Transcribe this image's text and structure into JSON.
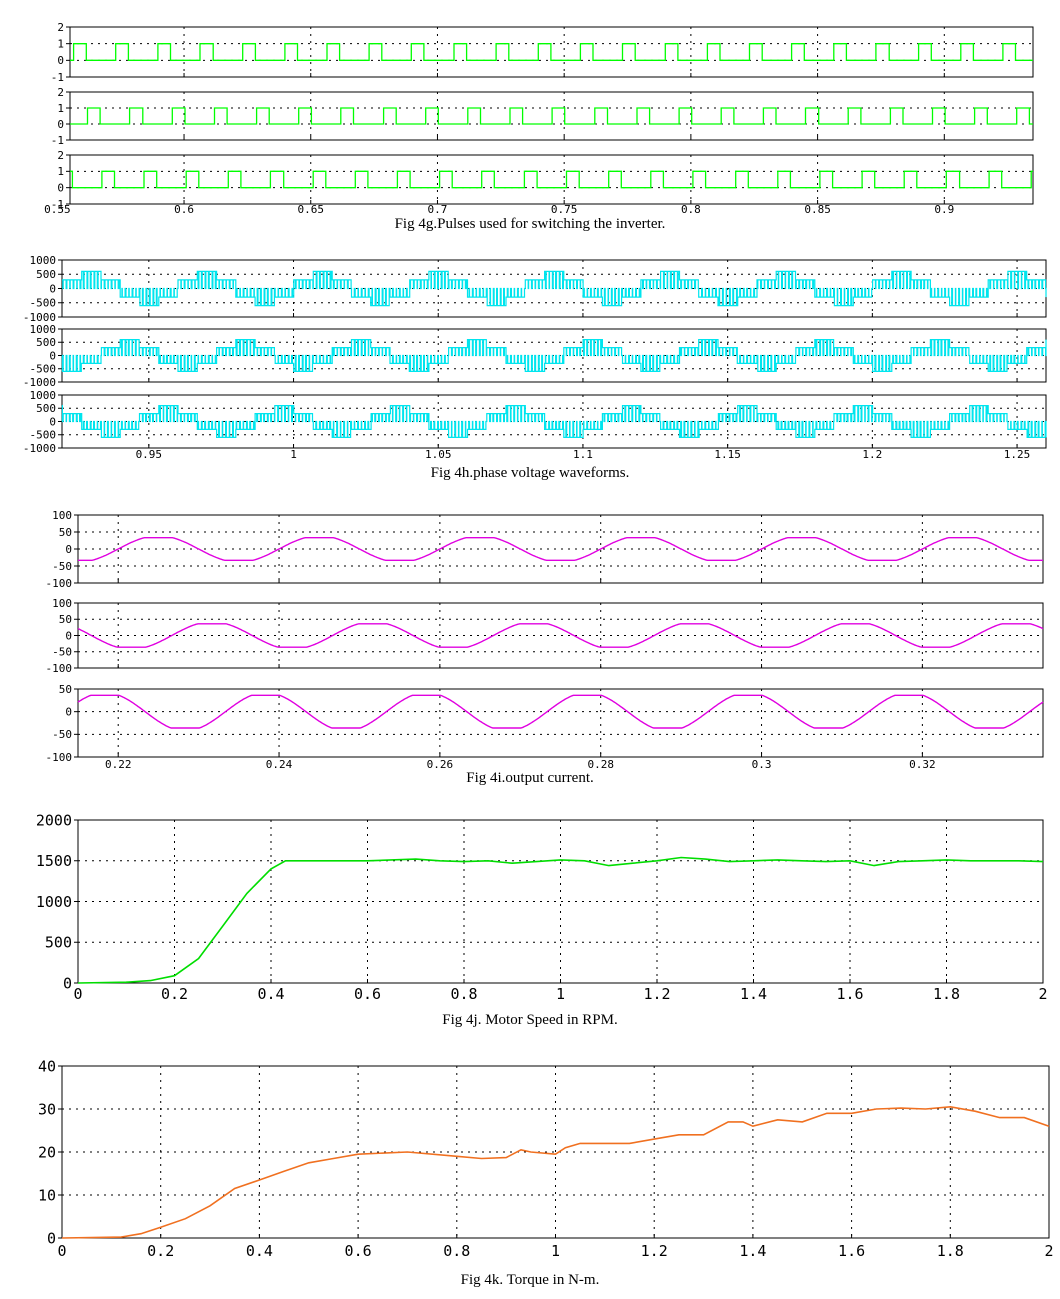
{
  "captions": {
    "g": "Fig 4g.Pulses used for switching the inverter.",
    "h": "Fig 4h.phase voltage waveforms.",
    "i": "Fig 4i.output current.",
    "j": "Fig 4j. Motor Speed in RPM.",
    "k": "Fig 4k. Torque in N-m."
  },
  "colors": {
    "pulses": "#00ff00",
    "voltage": "#00e5ee",
    "current": "#e000e0",
    "speed": "#00dd00",
    "torque": "#f07020",
    "grid": "#000000"
  },
  "chart_data": [
    {
      "id": "fig4g",
      "type": "line",
      "title": "",
      "xlabel": "",
      "ylabel": "",
      "xlim": [
        0.555,
        0.935
      ],
      "xticks": [
        0.55,
        0.6,
        0.65,
        0.7,
        0.75,
        0.8,
        0.85,
        0.9
      ],
      "xtick_labels": [
        "0.55",
        "0.6",
        "0.65",
        "0.7",
        "0.75",
        "0.8",
        "0.85",
        "0.9"
      ],
      "grid": true,
      "subplots": [
        {
          "ylim": [
            -1,
            2
          ],
          "yticks": [
            -1,
            0,
            1,
            2
          ],
          "ytick_labels": [
            "-1",
            "0",
            "1",
            "2"
          ],
          "period": 0.01667,
          "phase": 0.0,
          "duty": 0.3,
          "offset": 0.0105
        },
        {
          "ylim": [
            -1,
            2
          ],
          "yticks": [
            -1,
            0,
            1,
            2
          ],
          "ytick_labels": [
            "-1",
            "0",
            "1",
            "2"
          ],
          "period": 0.01667,
          "phase": 0.333,
          "duty": 0.3,
          "offset": 0.0105
        },
        {
          "ylim": [
            -1,
            2
          ],
          "yticks": [
            -1,
            0,
            1,
            2
          ],
          "ytick_labels": [
            "-1",
            "0",
            "1",
            "2"
          ],
          "period": 0.01667,
          "phase": 0.667,
          "duty": 0.3,
          "offset": 0.0105
        }
      ]
    },
    {
      "id": "fig4h",
      "type": "line",
      "title": "",
      "xlabel": "",
      "ylabel": "",
      "xlim": [
        0.92,
        1.26
      ],
      "xticks": [
        0.95,
        1.0,
        1.05,
        1.1,
        1.15,
        1.2,
        1.25
      ],
      "xtick_labels": [
        "0.95",
        "1",
        "1.05",
        "1.1",
        "1.15",
        "1.2",
        "1.25"
      ],
      "grid": true,
      "subplots": [
        {
          "ylim": [
            -1000,
            1000
          ],
          "yticks": [
            -1000,
            -500,
            0,
            500,
            1000
          ],
          "ytick_labels": [
            "-1000",
            "-500",
            "0",
            "500",
            "1000"
          ],
          "period": 0.04,
          "phase": 0.0,
          "level": 600
        },
        {
          "ylim": [
            -1000,
            1000
          ],
          "yticks": [
            -1000,
            -500,
            0,
            500,
            1000
          ],
          "ytick_labels": [
            "-1000",
            "-500",
            "0",
            "500",
            "1000"
          ],
          "period": 0.04,
          "phase": 0.333,
          "level": 600
        },
        {
          "ylim": [
            -1000,
            1000
          ],
          "yticks": [
            -1000,
            -500,
            0,
            500,
            1000
          ],
          "ytick_labels": [
            "-1000",
            "-500",
            "0",
            "500",
            "1000"
          ],
          "period": 0.04,
          "phase": 0.667,
          "level": 600
        }
      ]
    },
    {
      "id": "fig4i",
      "type": "line",
      "title": "",
      "xlabel": "",
      "ylabel": "",
      "xlim": [
        0.215,
        0.335
      ],
      "xticks": [
        0.22,
        0.24,
        0.26,
        0.28,
        0.3,
        0.32
      ],
      "xtick_labels": [
        "0.22",
        "0.24",
        "0.26",
        "0.28",
        "0.3",
        "0.32"
      ],
      "grid": true,
      "subplots": [
        {
          "ylim": [
            -100,
            100
          ],
          "yticks": [
            -100,
            -50,
            0,
            50,
            100
          ],
          "ytick_labels": [
            "-100",
            "-50",
            "0",
            "50",
            "100"
          ],
          "period": 0.02,
          "phase": 0.0,
          "amplitude": 35
        },
        {
          "ylim": [
            -100,
            100
          ],
          "yticks": [
            -100,
            -50,
            0,
            50,
            100
          ],
          "ytick_labels": [
            "-100",
            "-50",
            "0",
            "50",
            "100"
          ],
          "period": 0.02,
          "phase": 0.333,
          "amplitude": 38
        },
        {
          "ylim": [
            -100,
            50
          ],
          "yticks": [
            -100,
            -50,
            0,
            50
          ],
          "ytick_labels": [
            "-100",
            "-50",
            "0",
            "50"
          ],
          "period": 0.02,
          "phase": 0.667,
          "amplitude": 38
        }
      ]
    },
    {
      "id": "fig4j",
      "type": "line",
      "title": "",
      "xlabel": "",
      "ylabel": "",
      "xlim": [
        0,
        2
      ],
      "ylim": [
        0,
        2000
      ],
      "xticks": [
        0,
        0.2,
        0.4,
        0.6,
        0.8,
        1,
        1.2,
        1.4,
        1.6,
        1.8,
        2
      ],
      "xtick_labels": [
        "0",
        "0.2",
        "0.4",
        "0.6",
        "0.8",
        "1",
        "1.2",
        "1.4",
        "1.6",
        "1.8",
        "2"
      ],
      "yticks": [
        0,
        500,
        1000,
        1500,
        2000
      ],
      "ytick_labels": [
        "0",
        "500",
        "1000",
        "1500",
        "2000"
      ],
      "grid": true,
      "x": [
        0,
        0.1,
        0.15,
        0.2,
        0.25,
        0.3,
        0.35,
        0.4,
        0.43,
        0.46,
        0.5,
        0.6,
        0.7,
        0.75,
        0.8,
        0.85,
        0.9,
        1.0,
        1.05,
        1.1,
        1.15,
        1.2,
        1.25,
        1.3,
        1.35,
        1.4,
        1.45,
        1.5,
        1.55,
        1.6,
        1.65,
        1.7,
        1.75,
        1.8,
        1.85,
        1.9,
        1.95,
        2.0
      ],
      "series": [
        {
          "values": [
            0,
            10,
            30,
            90,
            300,
            700,
            1100,
            1400,
            1500,
            1500,
            1500,
            1500,
            1520,
            1500,
            1490,
            1500,
            1470,
            1510,
            1500,
            1440,
            1470,
            1500,
            1540,
            1520,
            1490,
            1500,
            1510,
            1500,
            1490,
            1500,
            1440,
            1490,
            1500,
            1510,
            1500,
            1500,
            1500,
            1490
          ]
        }
      ]
    },
    {
      "id": "fig4k",
      "type": "line",
      "title": "",
      "xlabel": "",
      "ylabel": "",
      "xlim": [
        0,
        2
      ],
      "ylim": [
        0,
        40
      ],
      "xticks": [
        0,
        0.2,
        0.4,
        0.6,
        0.8,
        1,
        1.2,
        1.4,
        1.6,
        1.8,
        2
      ],
      "xtick_labels": [
        "0",
        "0.2",
        "0.4",
        "0.6",
        "0.8",
        "1",
        "1.2",
        "1.4",
        "1.6",
        "1.8",
        "2"
      ],
      "yticks": [
        0,
        10,
        20,
        30,
        40
      ],
      "ytick_labels": [
        "0",
        "10",
        "20",
        "30",
        "40"
      ],
      "grid": true,
      "x": [
        0,
        0.12,
        0.16,
        0.2,
        0.25,
        0.3,
        0.35,
        0.4,
        0.45,
        0.5,
        0.55,
        0.6,
        0.7,
        0.8,
        0.85,
        0.9,
        0.93,
        0.95,
        1.0,
        1.02,
        1.05,
        1.15,
        1.2,
        1.25,
        1.3,
        1.35,
        1.38,
        1.4,
        1.45,
        1.5,
        1.55,
        1.6,
        1.65,
        1.7,
        1.75,
        1.8,
        1.85,
        1.9,
        1.95,
        2.0
      ],
      "series": [
        {
          "values": [
            0,
            0.2,
            1,
            2.5,
            4.5,
            7.5,
            11.5,
            13.5,
            15.5,
            17.5,
            18.5,
            19.5,
            20,
            19,
            18.5,
            18.7,
            20.5,
            20,
            19.5,
            21,
            22,
            22,
            23,
            24,
            24,
            27,
            27,
            26,
            27.5,
            27,
            29,
            29,
            30,
            30.2,
            30,
            30.5,
            29.5,
            28,
            28,
            26
          ]
        }
      ]
    }
  ]
}
